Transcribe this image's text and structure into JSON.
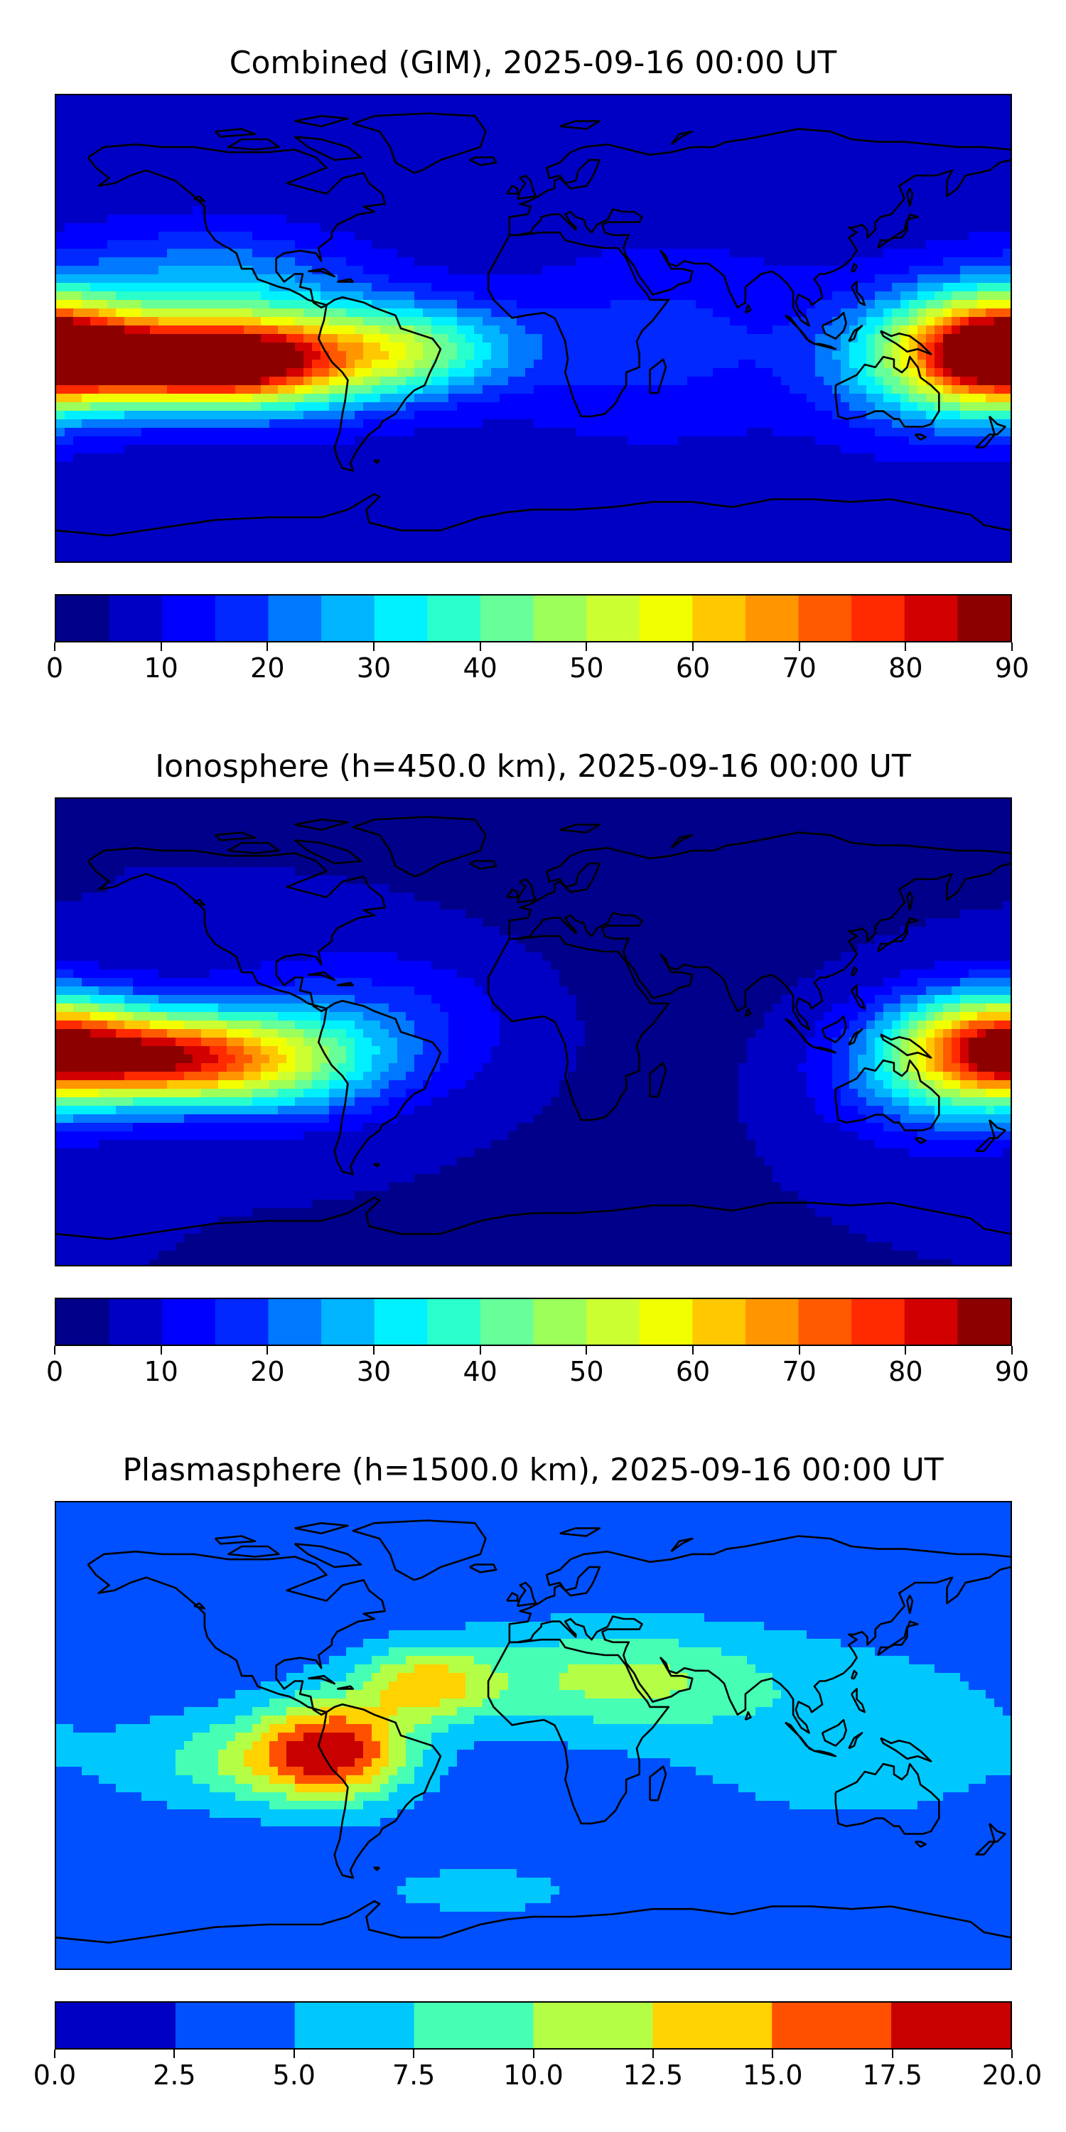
{
  "chart_data": [
    {
      "type": "heatmap",
      "title": "Combined (GIM), 2025-09-16 00:00 UT",
      "xlabel": "",
      "ylabel": "",
      "projection": "global map, longitude -180 to 180, latitude -90 to 90, coastlines",
      "grid": false,
      "colorbar": {
        "placement": "bottom",
        "levels": [
          0,
          5,
          10,
          15,
          20,
          25,
          30,
          35,
          40,
          45,
          50,
          55,
          60,
          65,
          70,
          75,
          80,
          85,
          90
        ],
        "tick_labels": [
          "0",
          "10",
          "20",
          "30",
          "40",
          "50",
          "60",
          "70",
          "80",
          "90"
        ],
        "colors": [
          "#00008a",
          "#0000c4",
          "#0000ff",
          "#0028ff",
          "#0078ff",
          "#00b4ff",
          "#00f0ff",
          "#28ffcc",
          "#66ff99",
          "#9cff5a",
          "#ccff32",
          "#f2ff00",
          "#ffc800",
          "#ff9600",
          "#ff5a00",
          "#ff2a00",
          "#d20000",
          "#8c0000"
        ]
      },
      "field": {
        "base": 7,
        "features": [
          {
            "lon": -130,
            "lat": -13,
            "value": 80,
            "sx": 30,
            "sy": 11
          },
          {
            "lon": -92,
            "lat": -12,
            "value": 40,
            "sx": 32,
            "sy": 14
          },
          {
            "lon": -45,
            "lat": -8,
            "value": 30,
            "sx": 28,
            "sy": 12
          },
          {
            "lon": 178,
            "lat": -8,
            "value": 68,
            "sx": 24,
            "sy": 14
          },
          {
            "lon": 155,
            "lat": -12,
            "value": 35,
            "sx": 30,
            "sy": 18
          },
          {
            "lon": -120,
            "lat": 18,
            "value": 18,
            "sx": 40,
            "sy": 15
          },
          {
            "lon": 45,
            "lat": -5,
            "value": 10,
            "sx": 40,
            "sy": 25
          },
          {
            "lon": -30,
            "lat": 50,
            "value": -2,
            "sx": 50,
            "sy": 20
          }
        ]
      }
    },
    {
      "type": "heatmap",
      "title": "Ionosphere  (h=450.0 km), 2025-09-16 00:00 UT",
      "xlabel": "",
      "ylabel": "",
      "projection": "global map, longitude -180 to 180, latitude -90 to 90, coastlines",
      "grid": false,
      "colorbar": {
        "placement": "bottom",
        "levels": [
          0,
          5,
          10,
          15,
          20,
          25,
          30,
          35,
          40,
          45,
          50,
          55,
          60,
          65,
          70,
          75,
          80,
          85,
          90
        ],
        "tick_labels": [
          "0",
          "10",
          "20",
          "30",
          "40",
          "50",
          "60",
          "70",
          "80",
          "90"
        ],
        "colors": [
          "#00008a",
          "#0000c4",
          "#0000ff",
          "#0028ff",
          "#0078ff",
          "#00b4ff",
          "#00f0ff",
          "#28ffcc",
          "#66ff99",
          "#9cff5a",
          "#ccff32",
          "#f2ff00",
          "#ffc800",
          "#ff9600",
          "#ff5a00",
          "#ff2a00",
          "#d20000",
          "#8c0000"
        ]
      },
      "field": {
        "base": 5,
        "features": [
          {
            "lon": -140,
            "lat": -10,
            "value": 62,
            "sx": 30,
            "sy": 12
          },
          {
            "lon": -95,
            "lat": -12,
            "value": 30,
            "sx": 30,
            "sy": 14
          },
          {
            "lon": 175,
            "lat": -5,
            "value": 55,
            "sx": 25,
            "sy": 14
          },
          {
            "lon": 155,
            "lat": -15,
            "value": 25,
            "sx": 30,
            "sy": 18
          },
          {
            "lon": -60,
            "lat": 5,
            "value": 12,
            "sx": 40,
            "sy": 20
          },
          {
            "lon": 30,
            "lat": 20,
            "value": -2,
            "sx": 60,
            "sy": 40
          }
        ]
      }
    },
    {
      "type": "heatmap",
      "title": "Plasmasphere (h=1500.0 km), 2025-09-16 00:00 UT",
      "xlabel": "",
      "ylabel": "",
      "projection": "global map, longitude -180 to 180, latitude -90 to 90, coastlines",
      "grid": false,
      "colorbar": {
        "placement": "bottom",
        "levels": [
          0,
          2.5,
          5,
          7.5,
          10,
          12.5,
          15,
          17.5,
          20
        ],
        "tick_labels": [
          "0.0",
          "2.5",
          "5.0",
          "7.5",
          "10.0",
          "12.5",
          "15.0",
          "17.5",
          "20.0"
        ],
        "colors": [
          "#0000c4",
          "#0050ff",
          "#00c8ff",
          "#46ffb4",
          "#b4ff46",
          "#ffd200",
          "#ff5000",
          "#c80000"
        ]
      },
      "field": {
        "base": 3.5,
        "features": [
          {
            "lon": -75,
            "lat": -5,
            "value": 13,
            "sx": 20,
            "sy": 14
          },
          {
            "lon": -40,
            "lat": 20,
            "value": 9,
            "sx": 18,
            "sy": 10
          },
          {
            "lon": -105,
            "lat": -10,
            "value": 6,
            "sx": 30,
            "sy": 12
          },
          {
            "lon": 30,
            "lat": 22,
            "value": 7,
            "sx": 40,
            "sy": 14
          },
          {
            "lon": 120,
            "lat": 0,
            "value": 3,
            "sx": 50,
            "sy": 25
          },
          {
            "lon": -20,
            "lat": -60,
            "value": 2,
            "sx": 40,
            "sy": 10
          }
        ]
      }
    }
  ]
}
